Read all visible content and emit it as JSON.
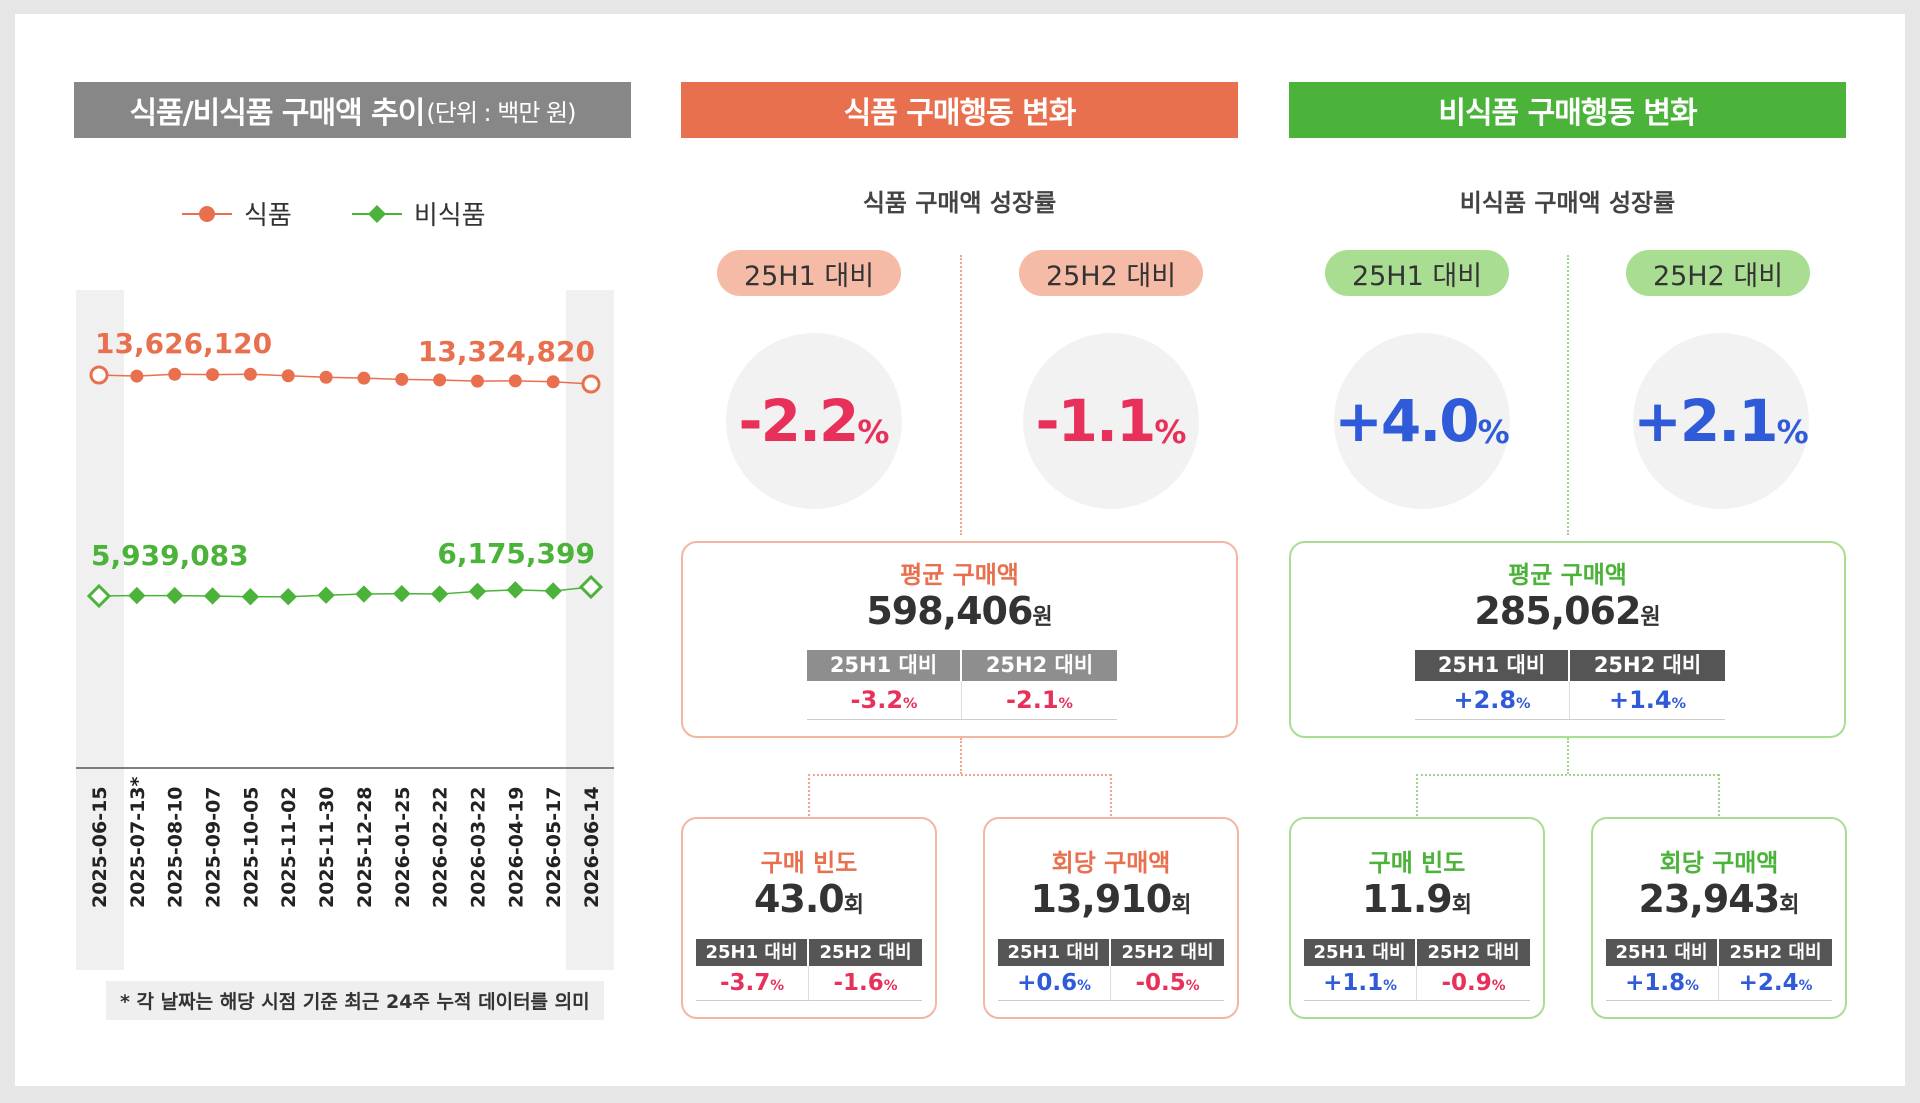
{
  "colors": {
    "food": "#e9704f",
    "nonfood": "#4bb33a",
    "negative": "#e8315a",
    "positive": "#2f5bd9",
    "gray_banner": "#878787"
  },
  "left_panel": {
    "title": "식품/비식품 구매액 추이",
    "title_unit": "(단위 : 백만 원)",
    "legend": [
      {
        "label": "식품",
        "marker": "circle-marker-icon"
      },
      {
        "label": "비식품",
        "marker": "diamond-marker-icon"
      }
    ],
    "footnote": "* 각 날짜는 해당 시점 기준 최근 24주 누적 데이터를 의미"
  },
  "chart_data": {
    "type": "line",
    "title": "식품/비식품 구매액 추이",
    "unit": "(단위 : 백만 원)",
    "categories": [
      "2025-06-15",
      "2025-07-13*",
      "2025-08-10",
      "2025-09-07",
      "2025-10-05",
      "2025-11-02",
      "2025-11-30",
      "2025-12-28",
      "2026-01-25",
      "2026-02-22",
      "2026-03-22",
      "2026-04-19",
      "2026-05-17",
      "2026-06-14"
    ],
    "series": [
      {
        "name": "식품",
        "values": [
          13626120,
          13590000,
          13650000,
          13640000,
          13650000,
          13600000,
          13550000,
          13520000,
          13480000,
          13460000,
          13420000,
          13430000,
          13400000,
          13324820
        ],
        "labels": {
          "first": "13,626,120",
          "last": "13,324,820"
        }
      },
      {
        "name": "비식품",
        "values": [
          5939083,
          5950000,
          5950000,
          5940000,
          5920000,
          5920000,
          5960000,
          5990000,
          6000000,
          5990000,
          6060000,
          6100000,
          6070000,
          6175399
        ],
        "labels": {
          "first": "5,939,083",
          "last": "6,175,399"
        }
      }
    ],
    "legend_position": "top",
    "grid": false
  },
  "food": {
    "banner": "식품 구매행동 변화",
    "subtitle": "식품 구매액 성장률",
    "growth": [
      {
        "label": "25H1 대비",
        "value": "-2.2",
        "unit": "%"
      },
      {
        "label": "25H2 대비",
        "value": "-1.1",
        "unit": "%"
      }
    ],
    "avg": {
      "label": "평균 구매액",
      "value": "598,406",
      "unit": "원",
      "compare": [
        {
          "label": "25H1 대비",
          "value": "-3.2",
          "unit": "%"
        },
        {
          "label": "25H2 대비",
          "value": "-2.1",
          "unit": "%"
        }
      ]
    },
    "freq": {
      "label": "구매 빈도",
      "value": "43.0",
      "unit": "회",
      "compare": [
        {
          "label": "25H1 대비",
          "value": "-3.7",
          "unit": "%"
        },
        {
          "label": "25H2 대비",
          "value": "-1.6",
          "unit": "%"
        }
      ]
    },
    "per": {
      "label": "회당 구매액",
      "value": "13,910",
      "unit": "회",
      "compare": [
        {
          "label": "25H1 대비",
          "value": "+0.6",
          "unit": "%"
        },
        {
          "label": "25H2 대비",
          "value": "-0.5",
          "unit": "%"
        }
      ]
    }
  },
  "nonfood": {
    "banner": "비식품 구매행동 변화",
    "subtitle": "비식품 구매액 성장률",
    "growth": [
      {
        "label": "25H1 대비",
        "value": "+4.0",
        "unit": "%"
      },
      {
        "label": "25H2 대비",
        "value": "+2.1",
        "unit": "%"
      }
    ],
    "avg": {
      "label": "평균 구매액",
      "value": "285,062",
      "unit": "원",
      "compare": [
        {
          "label": "25H1 대비",
          "value": "+2.8",
          "unit": "%"
        },
        {
          "label": "25H2 대비",
          "value": "+1.4",
          "unit": "%"
        }
      ]
    },
    "freq": {
      "label": "구매 빈도",
      "value": "11.9",
      "unit": "회",
      "compare": [
        {
          "label": "25H1 대비",
          "value": "+1.1",
          "unit": "%"
        },
        {
          "label": "25H2 대비",
          "value": "-0.9",
          "unit": "%"
        }
      ]
    },
    "per": {
      "label": "회당 구매액",
      "value": "23,943",
      "unit": "회",
      "compare": [
        {
          "label": "25H1 대비",
          "value": "+1.8",
          "unit": "%"
        },
        {
          "label": "25H2 대비",
          "value": "+2.4",
          "unit": "%"
        }
      ]
    }
  }
}
